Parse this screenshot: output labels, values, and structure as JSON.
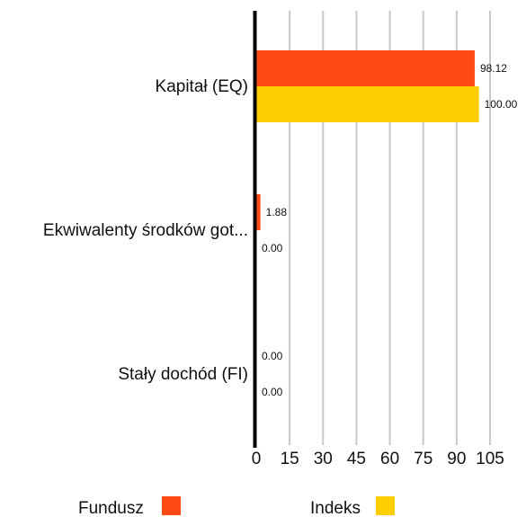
{
  "chart_data": {
    "type": "bar",
    "orientation": "horizontal",
    "categories": [
      "Kapitał (EQ)",
      "Ekwiwalenty środków got...",
      "Stały dochód (FI)"
    ],
    "series": [
      {
        "name": "Fundusz",
        "color": "#FF4A14",
        "values": [
          98.12,
          1.88,
          0.0
        ]
      },
      {
        "name": "Indeks",
        "color": "#FFCE00",
        "values": [
          100.0,
          0.0,
          0.0
        ]
      }
    ],
    "xlim": [
      0,
      105
    ],
    "xticks": [
      0,
      15,
      30,
      45,
      60,
      75,
      90,
      105
    ],
    "grid": true,
    "legend": "bottom"
  }
}
